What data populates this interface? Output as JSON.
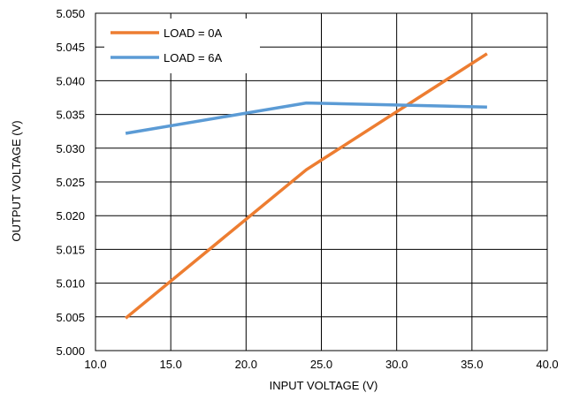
{
  "chart_data": {
    "type": "line",
    "title": "",
    "xlabel": "INPUT VOLTAGE (V)",
    "ylabel": "OUTPUT VOLTAGE (V)",
    "xlim": [
      10,
      40
    ],
    "ylim": [
      5.0,
      5.05
    ],
    "xticks": [
      10,
      15,
      20,
      25,
      30,
      35,
      40
    ],
    "xtick_labels": [
      "10.0",
      "15.0",
      "20.0",
      "25.0",
      "30.0",
      "35.0",
      "40.0"
    ],
    "yticks": [
      5.0,
      5.005,
      5.01,
      5.015,
      5.02,
      5.025,
      5.03,
      5.035,
      5.04,
      5.045,
      5.05
    ],
    "ytick_labels": [
      "5.000",
      "5.005",
      "5.010",
      "5.015",
      "5.020",
      "5.025",
      "5.030",
      "5.035",
      "5.040",
      "5.045",
      "5.050"
    ],
    "grid": true,
    "legend_position": "top-left",
    "series": [
      {
        "name": "LOAD = 0A",
        "color": "#ED7D31",
        "x": [
          12,
          24,
          36
        ],
        "y": [
          5.0048,
          5.0268,
          5.044
        ]
      },
      {
        "name": "LOAD = 6A",
        "color": "#5B9BD5",
        "x": [
          12,
          24,
          36
        ],
        "y": [
          5.0322,
          5.0367,
          5.0361
        ]
      }
    ]
  }
}
